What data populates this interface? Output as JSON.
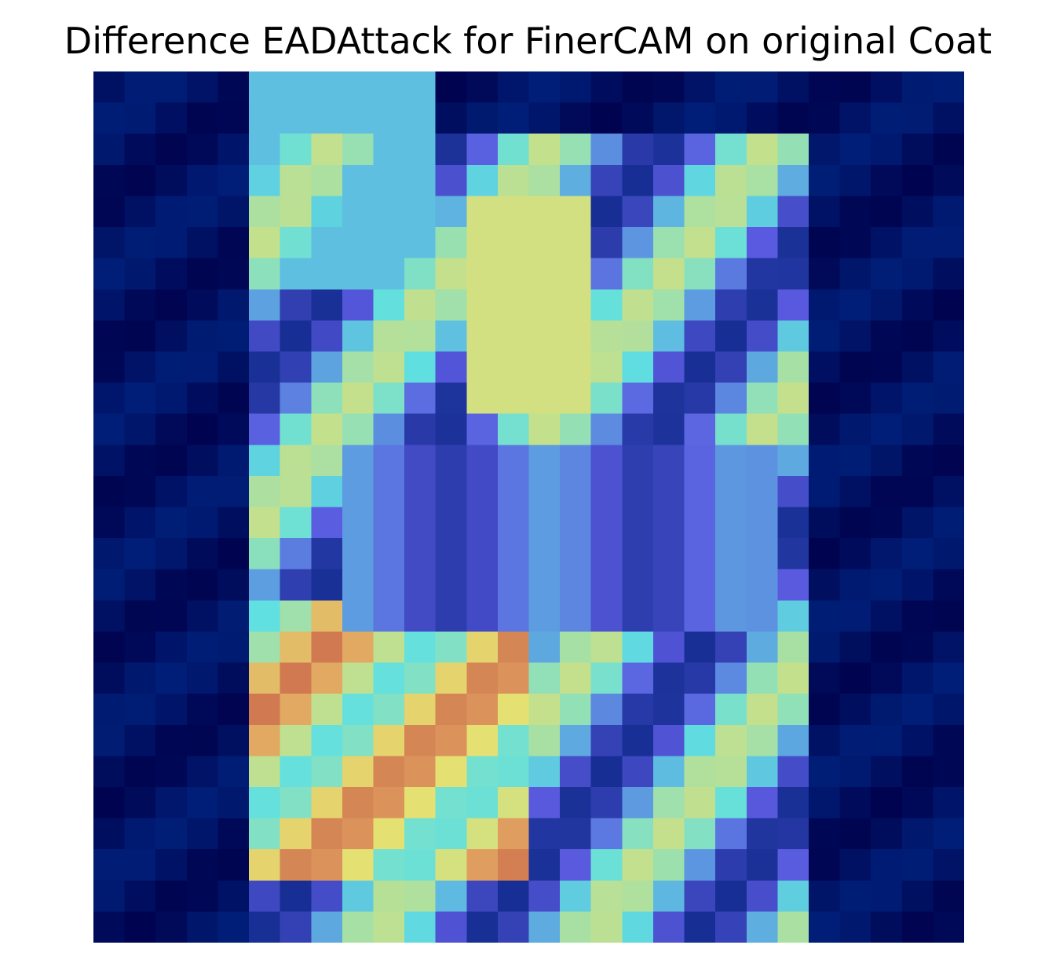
{
  "title": "Difference EADAttack for FinerCAM on original Coat",
  "overlay": {
    "rows": 28,
    "cols": 28,
    "palette": {
      "deep": "#00004a",
      "navy": "#00207a",
      "teal": "#008080",
      "olive": "#807800",
      "blue": "#5a5ae0",
      "cyan": "#60e0e0",
      "yellow": "#e6e070",
      "orange": "#e0a060",
      "red": "#c05040"
    }
  }
}
